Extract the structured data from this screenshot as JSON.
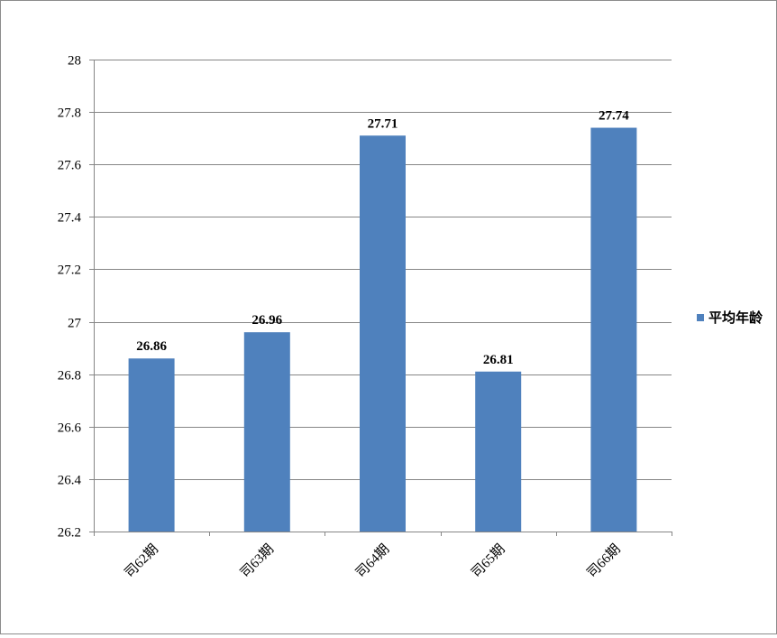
{
  "chart_data": {
    "type": "bar",
    "title": "",
    "xlabel": "",
    "ylabel": "",
    "categories": [
      "司62期",
      "司63期",
      "司64期",
      "司65期",
      "司66期"
    ],
    "series": [
      {
        "name": "平均年龄",
        "values": [
          26.86,
          26.96,
          27.71,
          26.81,
          27.74
        ],
        "color": "#4f81bd"
      }
    ],
    "data_labels": [
      "26.86",
      "26.96",
      "27.71",
      "26.81",
      "27.74"
    ],
    "ylim": [
      26.2,
      28
    ],
    "yticks": [
      26.2,
      26.4,
      26.6,
      26.8,
      27,
      27.2,
      27.4,
      27.6,
      27.8,
      28
    ],
    "ytick_labels": [
      "26.2",
      "26.4",
      "26.6",
      "26.8",
      "27",
      "27.2",
      "27.4",
      "27.6",
      "27.8",
      "28"
    ],
    "grid": true,
    "legend_position": "right",
    "gridline_color": "#868686"
  }
}
